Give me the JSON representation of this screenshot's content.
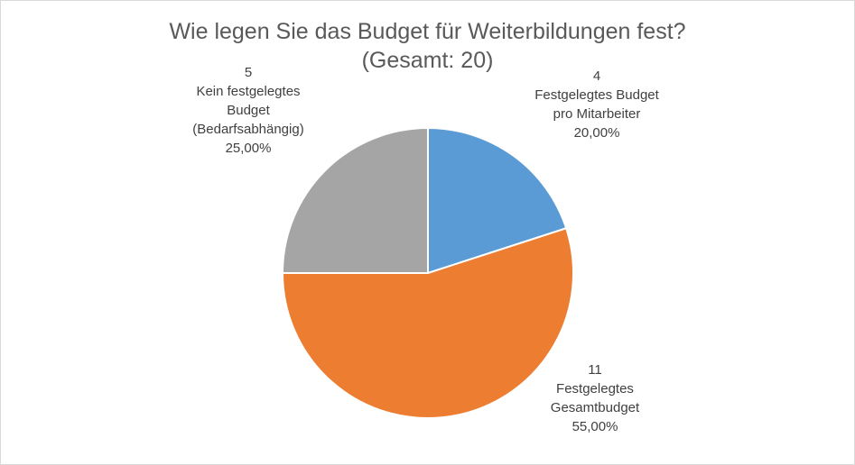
{
  "chart_data": {
    "type": "pie",
    "title_lines": [
      "Wie legen Sie das Budget für Weiterbildungen fest?",
      "(Gesamt: 20)"
    ],
    "total": 20,
    "slices": [
      {
        "label_lines": [
          "Festgelegtes Budget",
          "pro Mitarbeiter"
        ],
        "value": 4,
        "value_text": "4",
        "percent_text": "20,00%",
        "color": "#5b9bd5"
      },
      {
        "label_lines": [
          "Festgelegtes",
          "Gesamtbudget"
        ],
        "value": 11,
        "value_text": "11",
        "percent_text": "55,00%",
        "color": "#ed7d31"
      },
      {
        "label_lines": [
          "Kein festgelegtes",
          "Budget",
          "(Bedarfsabhängig)"
        ],
        "value": 5,
        "value_text": "5",
        "percent_text": "25,00%",
        "color": "#a5a5a5"
      }
    ],
    "start_angle_deg": 0,
    "direction": "clockwise",
    "legend": "none"
  }
}
